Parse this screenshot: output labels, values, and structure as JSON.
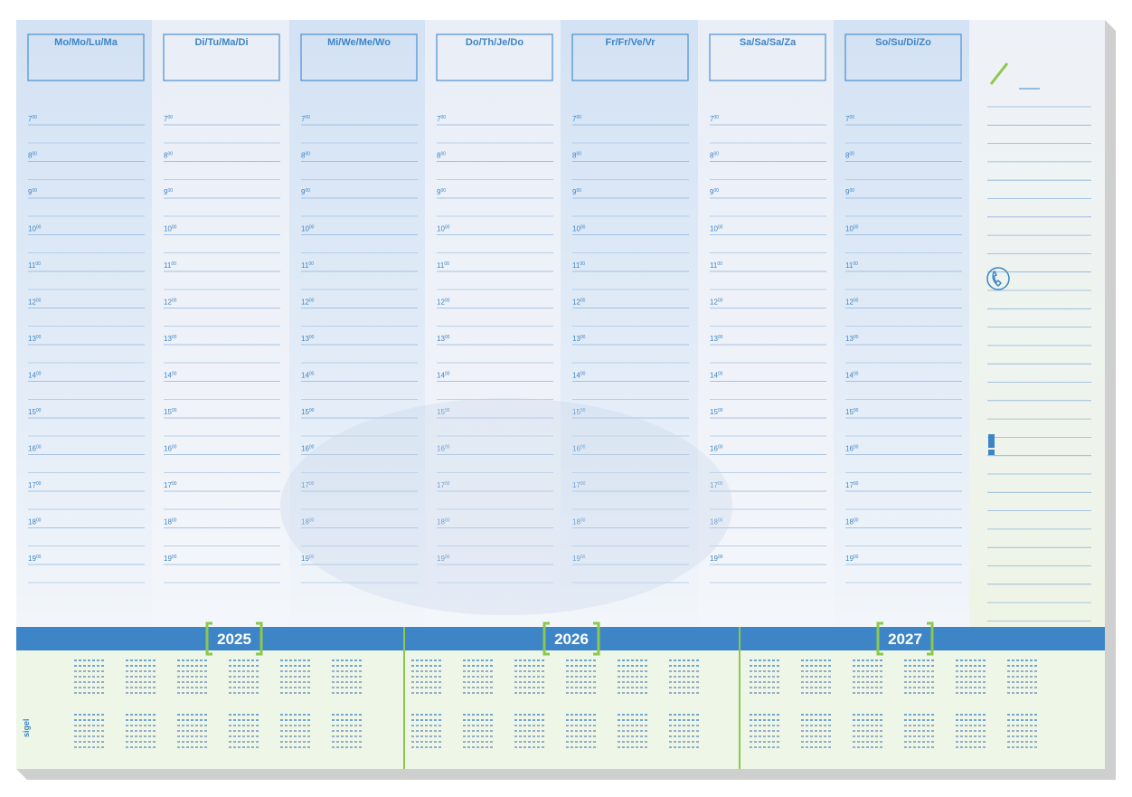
{
  "days": [
    "Mo/Mo/Lu/Ma",
    "Di/Tu/Ma/Di",
    "Mi/We/Me/Wo",
    "Do/Th/Je/Do",
    "Fr/Fr/Ve/Vr",
    "Sa/Sa/Sa/Za",
    "So/Su/Di/Zo"
  ],
  "hours": [
    "7",
    "8",
    "9",
    "10",
    "11",
    "12",
    "13",
    "14",
    "15",
    "16",
    "17",
    "18",
    "19"
  ],
  "hour_suffix": "00",
  "years": [
    "2025",
    "2026",
    "2027"
  ],
  "brand": "sigel"
}
